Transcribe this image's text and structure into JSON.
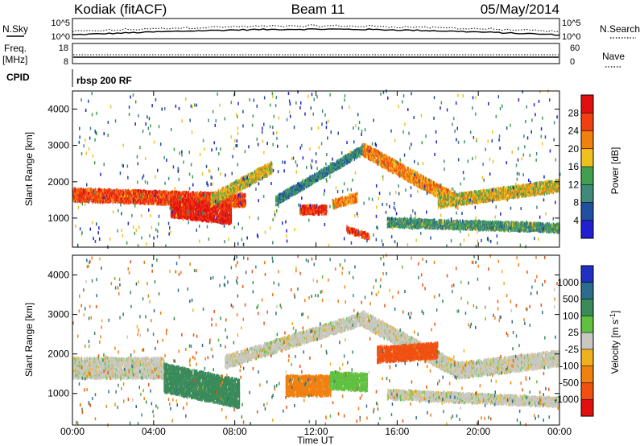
{
  "header": {
    "station": "Kodiak (fitACF)",
    "beam": "Beam 11",
    "date": "05/May/2014"
  },
  "top_panels": {
    "nsky_label": "N.Sky",
    "nsky_ticks": [
      "10^5",
      "10^0"
    ],
    "nsearch_label": "N.Search",
    "nsearch_ticks": [
      "10^5",
      "10^0"
    ],
    "freq_label_1": "Freq.",
    "freq_label_2": "[MHz]",
    "freq_ticks": [
      "18",
      "8"
    ],
    "nave_label": "Nave",
    "nave_ticks": [
      "60",
      "0"
    ],
    "cpid_label": "CPID",
    "cpid_value": "rbsp 200 RF"
  },
  "colors": {
    "power_scale": [
      "#2020d0",
      "#2050a0",
      "#408a7a",
      "#40a050",
      "#f0c020",
      "#f08010",
      "#f04010",
      "#e01010"
    ],
    "velocity_scale": [
      "#2030c0",
      "#2c6c8c",
      "#3a8a5a",
      "#60c040",
      "#c8c8c0",
      "#f0b020",
      "#f08010",
      "#f05010",
      "#e01010"
    ],
    "axis": "#000000"
  },
  "chart_data": [
    {
      "type": "heatmap",
      "panel": "power",
      "ylabel": "Slant Range [km]",
      "xlabel": "",
      "x_ticks": [
        "00:00",
        "04:00",
        "08:00",
        "12:00",
        "16:00",
        "20:00",
        "00:00"
      ],
      "xlim_hours": [
        0,
        24
      ],
      "y_ticks": [
        1000,
        2000,
        3000,
        4000
      ],
      "ylim_km": [
        200,
        4500
      ],
      "colorbar_label": "Power [dB]",
      "colorbar_ticks": [
        4,
        8,
        12,
        16,
        20,
        24,
        28
      ],
      "clim": [
        0,
        32
      ],
      "echo_bands": [
        {
          "from_h": 0.0,
          "to_h": 8.5,
          "range_km_start": 1650,
          "range_km_end": 1500,
          "width_km": 350,
          "value": 26
        },
        {
          "from_h": 4.8,
          "to_h": 7.8,
          "range_km_start": 1300,
          "range_km_end": 1100,
          "width_km": 500,
          "value": 29
        },
        {
          "from_h": 6.8,
          "to_h": 9.8,
          "range_km_start": 1500,
          "range_km_end": 2400,
          "width_km": 300,
          "value": 18
        },
        {
          "from_h": 10.0,
          "to_h": 14.3,
          "range_km_start": 1500,
          "range_km_end": 2900,
          "width_km": 250,
          "value": 10
        },
        {
          "from_h": 14.3,
          "to_h": 19.0,
          "range_km_start": 2900,
          "range_km_end": 1450,
          "width_km": 350,
          "value": 22
        },
        {
          "from_h": 18.0,
          "to_h": 24.0,
          "range_km_start": 1450,
          "range_km_end": 1900,
          "width_km": 300,
          "value": 18
        },
        {
          "from_h": 15.5,
          "to_h": 24.0,
          "range_km_start": 900,
          "range_km_end": 750,
          "width_km": 250,
          "value": 12
        },
        {
          "from_h": 11.2,
          "to_h": 12.5,
          "range_km_start": 1250,
          "range_km_end": 1250,
          "width_km": 250,
          "value": 28
        },
        {
          "from_h": 12.8,
          "to_h": 14.0,
          "range_km_start": 1400,
          "range_km_end": 1600,
          "width_km": 250,
          "value": 22
        },
        {
          "from_h": 13.5,
          "to_h": 14.6,
          "range_km_start": 700,
          "range_km_end": 500,
          "width_km": 150,
          "value": 27
        }
      ]
    },
    {
      "type": "heatmap",
      "panel": "velocity",
      "ylabel": "Slant Range [km]",
      "xlabel": "Time UT",
      "x_ticks": [
        "00:00",
        "04:00",
        "08:00",
        "12:00",
        "16:00",
        "20:00",
        "00:00"
      ],
      "xlim_hours": [
        0,
        24
      ],
      "y_ticks": [
        1000,
        2000,
        3000,
        4000
      ],
      "ylim_km": [
        200,
        4500
      ],
      "colorbar_label": "Velocity [m s^-1]",
      "colorbar_ticks": [
        "1000",
        "500",
        "100",
        "25",
        "-25",
        "-100",
        "-500",
        "-1000"
      ],
      "echo_bands": [
        {
          "from_h": 0.0,
          "to_h": 4.5,
          "range_km_start": 1650,
          "range_km_end": 1650,
          "width_km": 500,
          "value": 0
        },
        {
          "from_h": 4.5,
          "to_h": 8.2,
          "range_km_start": 1400,
          "range_km_end": 1000,
          "width_km": 700,
          "value": 350
        },
        {
          "from_h": 7.5,
          "to_h": 14.3,
          "range_km_start": 1800,
          "range_km_end": 2900,
          "width_km": 300,
          "value": 0
        },
        {
          "from_h": 14.3,
          "to_h": 19.0,
          "range_km_start": 2900,
          "range_km_end": 1600,
          "width_km": 400,
          "value": 0
        },
        {
          "from_h": 19.0,
          "to_h": 24.0,
          "range_km_start": 1600,
          "range_km_end": 1900,
          "width_km": 400,
          "value": 0
        },
        {
          "from_h": 15.0,
          "to_h": 18.0,
          "range_km_start": 2000,
          "range_km_end": 2100,
          "width_km": 400,
          "value": -900
        },
        {
          "from_h": 10.5,
          "to_h": 12.7,
          "range_km_start": 1200,
          "range_km_end": 1200,
          "width_km": 500,
          "value": -300
        },
        {
          "from_h": 12.7,
          "to_h": 14.5,
          "range_km_start": 1350,
          "range_km_end": 1300,
          "width_km": 450,
          "value": 60
        },
        {
          "from_h": 15.5,
          "to_h": 24.0,
          "range_km_start": 1000,
          "range_km_end": 800,
          "width_km": 250,
          "value": 0
        }
      ]
    }
  ]
}
